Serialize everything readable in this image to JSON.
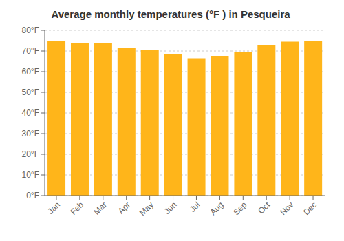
{
  "chart_data": {
    "type": "bar",
    "title": "Average monthly temperatures (°F ) in Pesqueira",
    "categories": [
      "Jan",
      "Feb",
      "Mar",
      "Apr",
      "May",
      "Jun",
      "Jul",
      "Aug",
      "Sep",
      "Oct",
      "Nov",
      "Dec"
    ],
    "values": [
      75.0,
      74.0,
      74.0,
      71.5,
      70.5,
      68.5,
      66.5,
      67.5,
      69.5,
      73.0,
      74.5,
      75.0
    ],
    "color": "#FFB51A",
    "ylim": [
      0,
      80
    ],
    "yticks": [
      {
        "value": 0,
        "label": "0°F"
      },
      {
        "value": 10,
        "label": "10°F"
      },
      {
        "value": 20,
        "label": "20°F"
      },
      {
        "value": 30,
        "label": "30°F"
      },
      {
        "value": 40,
        "label": "40°F"
      },
      {
        "value": 50,
        "label": "50°F"
      },
      {
        "value": 60,
        "label": "60°F"
      },
      {
        "value": 70,
        "label": "70°F"
      },
      {
        "value": 80,
        "label": "80°F"
      }
    ],
    "grid": true
  }
}
